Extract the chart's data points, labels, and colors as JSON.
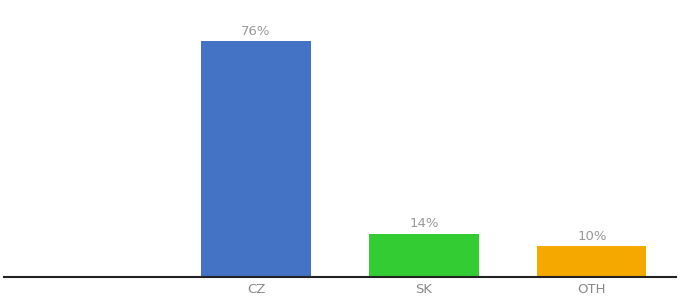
{
  "categories": [
    "CZ",
    "SK",
    "OTH"
  ],
  "values": [
    76,
    14,
    10
  ],
  "bar_colors": [
    "#4472c4",
    "#33cc33",
    "#f5a800"
  ],
  "ylim": [
    0,
    88
  ],
  "background_color": "#ffffff",
  "bar_width": 0.65,
  "label_fontsize": 9.5,
  "tick_fontsize": 9.5,
  "label_color": "#999999",
  "tick_color": "#888888",
  "spine_color": "#222222",
  "xlim": [
    -0.5,
    3.5
  ]
}
